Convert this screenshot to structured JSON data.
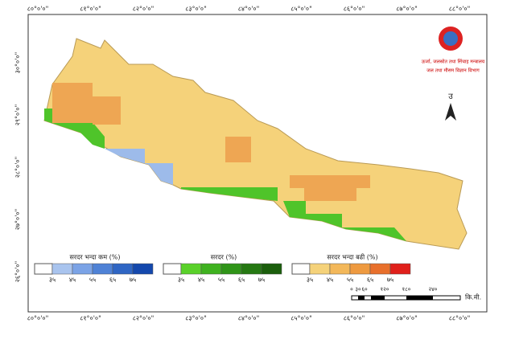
{
  "longitude_labels": [
    "८०°०'०\"",
    "८१°०'०\"",
    "८२°०'०\"",
    "८३°०'०\"",
    "८४°०'०\"",
    "८५°०'०\"",
    "८६°०'०\"",
    "८७°०'०\"",
    "८८°०'०\""
  ],
  "latitude_labels": [
    "३०°०'०\"",
    "२९°०'०\"",
    "२८°०'०\"",
    "२७°०'०\"",
    "२६°०'०\""
  ],
  "logo": {
    "ministry": "ऊर्जा, जलस्रोत तथा सिंचाइ मन्त्रालय",
    "department": "जल तथा मौसम विज्ञान विभाग"
  },
  "north_label": "उ",
  "legends": [
    {
      "title": "सरदर भन्दा कम (%)",
      "labels": [
        "३५",
        "४५",
        "५५",
        "६५",
        "७५"
      ]
    },
    {
      "title": "सरदर (%)",
      "labels": [
        "३५",
        "४५",
        "५५",
        "६५",
        "७५"
      ]
    },
    {
      "title": "सरदर भन्दा बढी (%)",
      "labels": [
        "३५",
        "४५",
        "५५",
        "६५",
        "७५"
      ]
    }
  ],
  "scale_bar": {
    "labels": [
      "०",
      "३०",
      "६०",
      "१२०",
      "१८०",
      "२४०"
    ],
    "unit": "कि.मी."
  }
}
